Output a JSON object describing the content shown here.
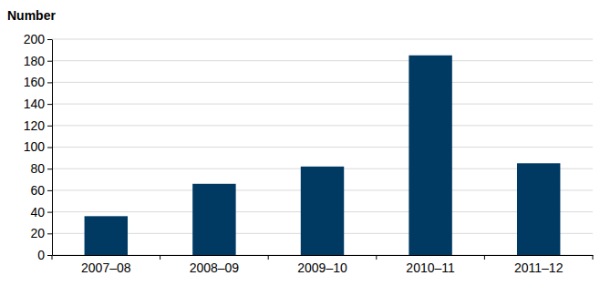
{
  "chart_data": {
    "type": "bar",
    "ylabel": "Number",
    "categories": [
      "2007–08",
      "2008–09",
      "2009–10",
      "2010–11",
      "2011–12"
    ],
    "values": [
      36,
      66,
      82,
      185,
      85
    ],
    "color": "#003a63",
    "ylim": [
      0,
      200
    ],
    "yticks": [
      0,
      20,
      40,
      60,
      80,
      100,
      120,
      140,
      160,
      180,
      200
    ],
    "grid": true
  }
}
